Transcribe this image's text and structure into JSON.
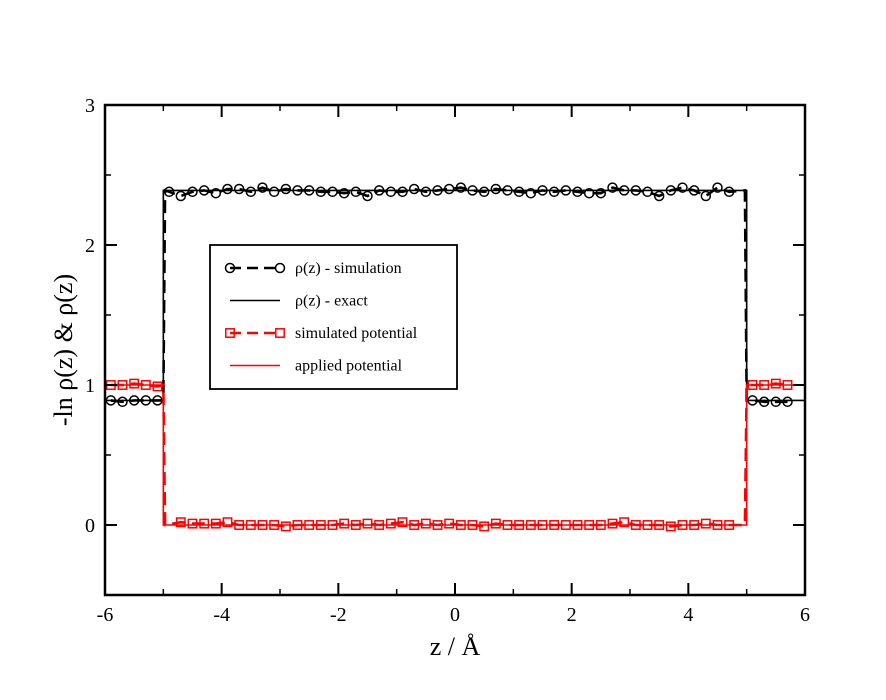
{
  "chart_data": {
    "type": "line",
    "xlabel": "z / Å",
    "ylabel": "-ln ρ(z)  &  ρ(z)",
    "xlim": [
      -6,
      6
    ],
    "ylim": [
      -0.5,
      3
    ],
    "xticks": [
      -6,
      -4,
      -2,
      0,
      2,
      4,
      6
    ],
    "yticks": [
      0,
      1,
      2,
      3
    ],
    "xtick_labels": [
      "-6",
      "-4",
      "-2",
      "0",
      "2",
      "4",
      "6"
    ],
    "ytick_labels": [
      "0",
      "1",
      "2",
      "3"
    ],
    "grid": false,
    "legend_position": "upper-left-inside",
    "series": [
      {
        "name": "ρ(z) - simulation",
        "color": "#000000",
        "line": "dashed",
        "marker": "circle",
        "x": [
          -5.9,
          -5.7,
          -5.5,
          -5.3,
          -5.1,
          -4.9,
          -4.7,
          -4.5,
          -4.3,
          -4.1,
          -3.9,
          -3.7,
          -3.5,
          -3.3,
          -3.1,
          -2.9,
          -2.7,
          -2.5,
          -2.3,
          -2.1,
          -1.9,
          -1.7,
          -1.5,
          -1.3,
          -1.1,
          -0.9,
          -0.7,
          -0.5,
          -0.3,
          -0.1,
          0.1,
          0.3,
          0.5,
          0.7,
          0.9,
          1.1,
          1.3,
          1.5,
          1.7,
          1.9,
          2.1,
          2.3,
          2.5,
          2.7,
          2.9,
          3.1,
          3.3,
          3.5,
          3.7,
          3.9,
          4.1,
          4.3,
          4.5,
          4.7,
          5.1,
          5.3,
          5.5,
          5.7
        ],
        "y": [
          0.89,
          0.88,
          0.89,
          0.89,
          0.89,
          2.38,
          2.35,
          2.38,
          2.39,
          2.37,
          2.4,
          2.4,
          2.38,
          2.41,
          2.38,
          2.4,
          2.39,
          2.39,
          2.38,
          2.38,
          2.37,
          2.38,
          2.35,
          2.39,
          2.38,
          2.38,
          2.4,
          2.38,
          2.39,
          2.4,
          2.41,
          2.39,
          2.38,
          2.4,
          2.39,
          2.38,
          2.37,
          2.39,
          2.38,
          2.39,
          2.38,
          2.37,
          2.37,
          2.41,
          2.39,
          2.39,
          2.38,
          2.35,
          2.39,
          2.41,
          2.39,
          2.35,
          2.41,
          2.38,
          0.89,
          0.88,
          0.88,
          0.88
        ]
      },
      {
        "name": "ρ(z) - exact",
        "color": "#000000",
        "line": "solid",
        "marker": "none",
        "x": [
          -6,
          -5,
          -5,
          5,
          5,
          6
        ],
        "y": [
          0.89,
          0.89,
          2.39,
          2.39,
          0.89,
          0.89
        ]
      },
      {
        "name": "simulated potential",
        "color": "#ff0000",
        "line": "dashed",
        "marker": "square",
        "x": [
          -5.9,
          -5.7,
          -5.5,
          -5.3,
          -5.1,
          -4.7,
          -4.5,
          -4.3,
          -4.1,
          -3.9,
          -3.7,
          -3.5,
          -3.3,
          -3.1,
          -2.9,
          -2.7,
          -2.5,
          -2.3,
          -2.1,
          -1.9,
          -1.7,
          -1.5,
          -1.3,
          -1.1,
          -0.9,
          -0.7,
          -0.5,
          -0.3,
          -0.1,
          0.1,
          0.3,
          0.5,
          0.7,
          0.9,
          1.1,
          1.3,
          1.5,
          1.7,
          1.9,
          2.1,
          2.3,
          2.5,
          2.7,
          2.9,
          3.1,
          3.3,
          3.5,
          3.7,
          3.9,
          4.1,
          4.3,
          4.5,
          4.7,
          5.1,
          5.3,
          5.5,
          5.7
        ],
        "y": [
          1.0,
          1.0,
          1.01,
          1.0,
          0.99,
          0.02,
          0.01,
          0.01,
          0.01,
          0.02,
          0.0,
          0.0,
          0.0,
          0.0,
          -0.01,
          0.0,
          0.0,
          0.0,
          0.0,
          0.01,
          0.0,
          0.01,
          0.0,
          0.01,
          0.02,
          0.0,
          0.01,
          0.0,
          0.01,
          0.0,
          0.0,
          -0.01,
          0.01,
          0.0,
          0.0,
          0.0,
          0.0,
          0.0,
          0.0,
          0.0,
          0.0,
          0.0,
          0.01,
          0.02,
          0.0,
          0.0,
          0.0,
          -0.01,
          0.0,
          0.0,
          0.01,
          0.0,
          0.0,
          1.0,
          1.0,
          1.01,
          1.0
        ]
      },
      {
        "name": "applied potential",
        "color": "#ff0000",
        "line": "solid",
        "marker": "none",
        "x": [
          -6,
          -5,
          -5,
          5,
          5,
          6
        ],
        "y": [
          1.0,
          1.0,
          0.0,
          0.0,
          1.0,
          1.0
        ]
      }
    ]
  }
}
